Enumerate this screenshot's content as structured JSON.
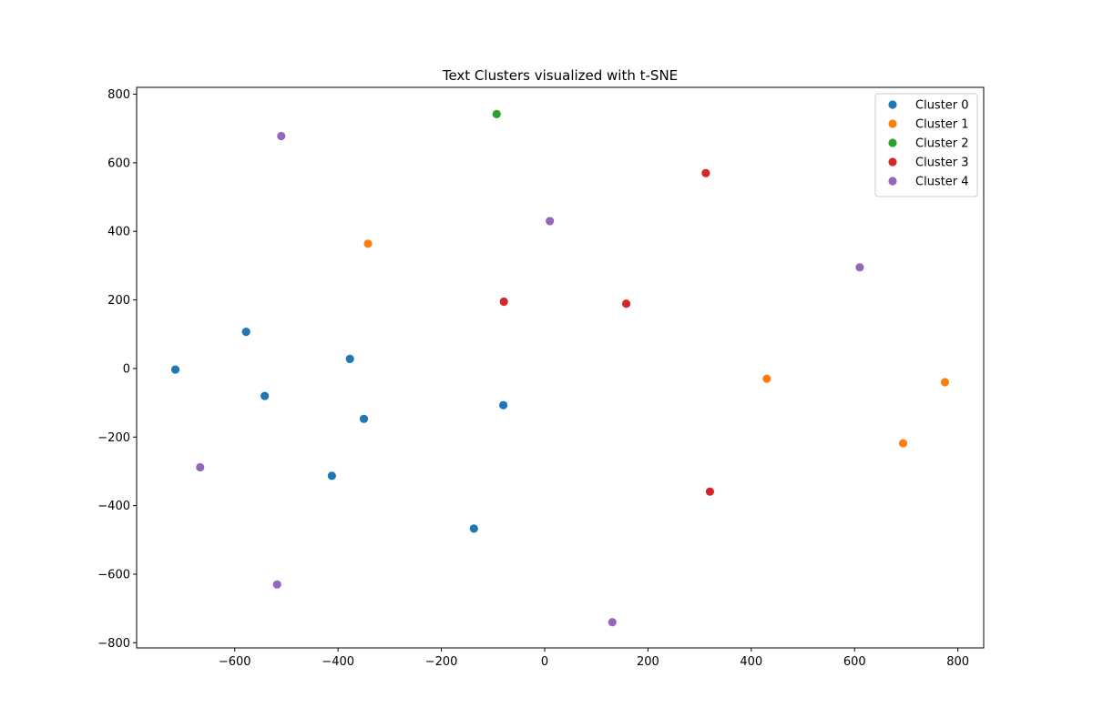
{
  "chart_data": {
    "type": "scatter",
    "title": "Text Clusters visualized with t-SNE",
    "xlabel": "",
    "ylabel": "",
    "xlim": [
      -790,
      850
    ],
    "ylim": [
      -815,
      820
    ],
    "xticks": [
      -600,
      -400,
      -200,
      0,
      200,
      400,
      600,
      800
    ],
    "yticks": [
      -800,
      -600,
      -400,
      -200,
      0,
      200,
      400,
      600,
      800
    ],
    "grid": false,
    "legend_position": "top-right",
    "series": [
      {
        "name": "Cluster 0",
        "color": "#1f77b4",
        "points": [
          {
            "x": -715,
            "y": -3
          },
          {
            "x": -578,
            "y": 107
          },
          {
            "x": -542,
            "y": -80
          },
          {
            "x": -377,
            "y": 28
          },
          {
            "x": -350,
            "y": -147
          },
          {
            "x": -412,
            "y": -313
          },
          {
            "x": -80,
            "y": -107
          },
          {
            "x": -137,
            "y": -467
          }
        ]
      },
      {
        "name": "Cluster 1",
        "color": "#ff7f0e",
        "points": [
          {
            "x": -342,
            "y": 364
          },
          {
            "x": 430,
            "y": -30
          },
          {
            "x": 775,
            "y": -40
          },
          {
            "x": 694,
            "y": -218
          }
        ]
      },
      {
        "name": "Cluster 2",
        "color": "#2ca02c",
        "points": [
          {
            "x": -93,
            "y": 742
          }
        ]
      },
      {
        "name": "Cluster 3",
        "color": "#d62728",
        "points": [
          {
            "x": 312,
            "y": 570
          },
          {
            "x": -79,
            "y": 195
          },
          {
            "x": 158,
            "y": 189
          },
          {
            "x": 320,
            "y": -359
          }
        ]
      },
      {
        "name": "Cluster 4",
        "color": "#9467bd",
        "points": [
          {
            "x": -510,
            "y": 678
          },
          {
            "x": 10,
            "y": 430
          },
          {
            "x": 610,
            "y": 295
          },
          {
            "x": -667,
            "y": -288
          },
          {
            "x": -518,
            "y": -630
          },
          {
            "x": 131,
            "y": -740
          }
        ]
      }
    ]
  }
}
